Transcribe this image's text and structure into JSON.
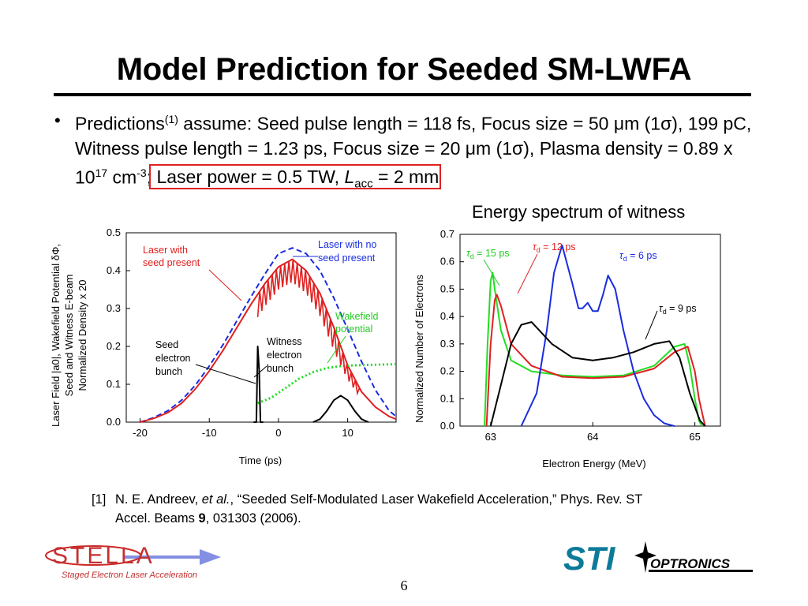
{
  "slide": {
    "title": "Model Prediction for Seeded SM-LWFA",
    "bullet": {
      "t1": "Predictions",
      "sup1": "(1)",
      "t2": " assume:  Seed pulse length = 118 fs, Focus size = 50 ",
      "mu": "μ",
      "t3": "m (1",
      "sigma": "σ",
      "t4": "), 199 pC, Witness pulse length = 1.23 ps, Focus size = 20 ",
      "t5": "), Plasma density = 0.89 x 10",
      "sup17": "17",
      "t6": " cm",
      "supm3": "-3",
      "t7": ";",
      "highlight_a": " Laser power = 0.5 TW, ",
      "highlight_L": "L",
      "highlight_acc": "acc",
      "highlight_b": " = 2 mm "
    },
    "reference": {
      "num": "[1]",
      "authors": "N. E. Andreev, ",
      "etal": "et al.",
      "rest1": ", “Seeded Self-Modulated Laser Wakefield Acceleration,” Phys. Rev. ST",
      "rest2a": "Accel. Beams ",
      "vol": "9",
      "rest2b": ", 031303 (2006)."
    },
    "page_number": "6",
    "logos": {
      "stella_text": "STELLA",
      "stella_tagline": "Staged Electron Laser Acceleration",
      "sti_text": "STI",
      "optronics_text": "OPTRONICS"
    },
    "colors": {
      "red": "#e02020",
      "blue": "#1a2ce0",
      "green": "#22dd22",
      "black": "#000000"
    }
  },
  "chart_data": [
    {
      "type": "line",
      "ylabel_line1": "Laser Field |a0|, Wakefield Potential δΦ,",
      "ylabel_line2": "Seed and Witness E-beam",
      "ylabel_line3": "Normalized Density x 20",
      "xlabel": "Time (ps)",
      "xlim": [
        -22,
        17
      ],
      "ylim": [
        0,
        0.5
      ],
      "xticks": [
        -20,
        -10,
        0,
        10
      ],
      "xtick_labels": [
        "-20",
        "-10",
        "0",
        "10"
      ],
      "yticks": [
        0,
        0.1,
        0.2,
        0.3,
        0.4,
        0.5
      ],
      "ytick_labels": [
        "0.0",
        "0.1",
        "0.2",
        "0.3",
        "0.4",
        "0.5"
      ],
      "annotations": {
        "red_l1": "Laser with",
        "red_l2": "seed present",
        "blue_l1": "Laser with no",
        "blue_l2": "seed present",
        "green_l1": "Wakefield",
        "green_l2": "potential",
        "seed_l1": "Seed",
        "seed_l2": "electron",
        "seed_l3": "bunch",
        "wit_l1": "Witness",
        "wit_l2": "electron",
        "wit_l3": "bunch"
      },
      "series": [
        {
          "name": "Laser with no seed present",
          "color": "#1a2ce0",
          "style": "dashed",
          "x": [
            -20,
            -18,
            -16,
            -14,
            -12,
            -10,
            -8,
            -6,
            -4,
            -2,
            0,
            2,
            4,
            6,
            8,
            10,
            12,
            14,
            16,
            17
          ],
          "y": [
            0.0,
            0.012,
            0.03,
            0.058,
            0.098,
            0.148,
            0.205,
            0.268,
            0.33,
            0.39,
            0.445,
            0.46,
            0.445,
            0.4,
            0.328,
            0.245,
            0.16,
            0.085,
            0.03,
            0.015
          ]
        },
        {
          "name": "Laser with seed present",
          "color": "#e02020",
          "style": "solid",
          "x": [
            -20,
            -18,
            -16,
            -14,
            -12,
            -10,
            -8,
            -6,
            -4,
            -2,
            0,
            2,
            4,
            6,
            8,
            10,
            12,
            14,
            16,
            17
          ],
          "y": [
            0.0,
            0.01,
            0.025,
            0.05,
            0.088,
            0.135,
            0.19,
            0.25,
            0.31,
            0.365,
            0.41,
            0.43,
            0.4,
            0.34,
            0.25,
            0.15,
            0.08,
            0.04,
            0.015,
            0.008
          ]
        },
        {
          "name": "Wakefield potential",
          "color": "#22dd22",
          "style": "dotted",
          "x": [
            -3,
            -1,
            1,
            3,
            5,
            7,
            9,
            11,
            13,
            15,
            17
          ],
          "y": [
            0.05,
            0.065,
            0.09,
            0.115,
            0.132,
            0.143,
            0.148,
            0.15,
            0.151,
            0.152,
            0.153
          ]
        },
        {
          "name": "Seed electron bunch",
          "color": "#000000",
          "style": "solid",
          "x": [
            -3.6,
            -3.2,
            -3.0,
            -2.8,
            -2.6,
            -2.2
          ],
          "y": [
            0.0,
            0.0,
            0.2,
            0.14,
            0.0,
            0.0
          ]
        },
        {
          "name": "Witness electron bunch",
          "color": "#000000",
          "style": "solid",
          "x": [
            5,
            6,
            7,
            8,
            9,
            10,
            11,
            12,
            13
          ],
          "y": [
            0.0,
            0.008,
            0.03,
            0.058,
            0.07,
            0.058,
            0.03,
            0.008,
            0.0
          ]
        }
      ]
    },
    {
      "type": "line",
      "title": "Energy spectrum of witness",
      "xlabel": "Electron Energy (MeV)",
      "ylabel": "Normalized Number of Electrons",
      "xlim": [
        62.7,
        65.25
      ],
      "ylim": [
        0,
        0.7
      ],
      "xticks": [
        63,
        64,
        65
      ],
      "xtick_labels": [
        "63",
        "64",
        "65"
      ],
      "yticks": [
        0,
        0.1,
        0.2,
        0.3,
        0.4,
        0.5,
        0.6,
        0.7
      ],
      "ytick_labels": [
        "0.0",
        "0.1",
        "0.2",
        "0.3",
        "0.4",
        "0.5",
        "0.6",
        "0.7"
      ],
      "series": [
        {
          "name": "τd = 15 ps",
          "label_sym": "τ",
          "label_sub": "d",
          "label_rest": " = 15 ps",
          "color": "#22dd22",
          "x": [
            62.94,
            62.97,
            63.0,
            63.02,
            63.04,
            63.1,
            63.2,
            63.4,
            63.7,
            64.0,
            64.3,
            64.6,
            64.8,
            64.9,
            64.95,
            65.0,
            65.04,
            65.07
          ],
          "y": [
            0.0,
            0.3,
            0.53,
            0.56,
            0.5,
            0.35,
            0.24,
            0.2,
            0.185,
            0.18,
            0.185,
            0.22,
            0.29,
            0.3,
            0.22,
            0.1,
            0.02,
            0.0
          ]
        },
        {
          "name": "τd = 12 ps",
          "label_sym": "τ",
          "label_sub": "d",
          "label_rest": " = 12 ps",
          "color": "#e02020",
          "x": [
            62.96,
            63.0,
            63.04,
            63.06,
            63.1,
            63.2,
            63.4,
            63.7,
            64.0,
            64.3,
            64.6,
            64.8,
            64.93,
            65.0,
            65.04,
            65.1
          ],
          "y": [
            0.0,
            0.3,
            0.46,
            0.48,
            0.44,
            0.3,
            0.22,
            0.18,
            0.175,
            0.18,
            0.21,
            0.27,
            0.29,
            0.2,
            0.1,
            0.0
          ]
        },
        {
          "name": "τd = 6 ps",
          "label_sym": "τ",
          "label_sub": "d",
          "label_rest": " = 6 ps",
          "color": "#1a2ce0",
          "x": [
            63.3,
            63.45,
            63.55,
            63.62,
            63.7,
            63.8,
            63.86,
            63.9,
            63.95,
            64.0,
            64.05,
            64.1,
            64.15,
            64.22,
            64.3,
            64.4,
            64.5,
            64.6,
            64.7,
            64.8
          ],
          "y": [
            0.0,
            0.12,
            0.35,
            0.56,
            0.66,
            0.52,
            0.43,
            0.43,
            0.45,
            0.42,
            0.42,
            0.48,
            0.55,
            0.5,
            0.35,
            0.2,
            0.1,
            0.04,
            0.01,
            0.0
          ]
        },
        {
          "name": "τd = 9 ps",
          "label_sym": "τ",
          "label_sub": "d",
          "label_rest": " = 9 ps",
          "color": "#000000",
          "x": [
            63.0,
            63.1,
            63.2,
            63.3,
            63.4,
            63.6,
            63.8,
            64.0,
            64.2,
            64.4,
            64.6,
            64.75,
            64.85,
            64.95,
            65.05,
            65.1
          ],
          "y": [
            0.0,
            0.15,
            0.3,
            0.37,
            0.38,
            0.3,
            0.25,
            0.24,
            0.25,
            0.27,
            0.3,
            0.31,
            0.25,
            0.12,
            0.02,
            0.0
          ]
        }
      ]
    }
  ]
}
